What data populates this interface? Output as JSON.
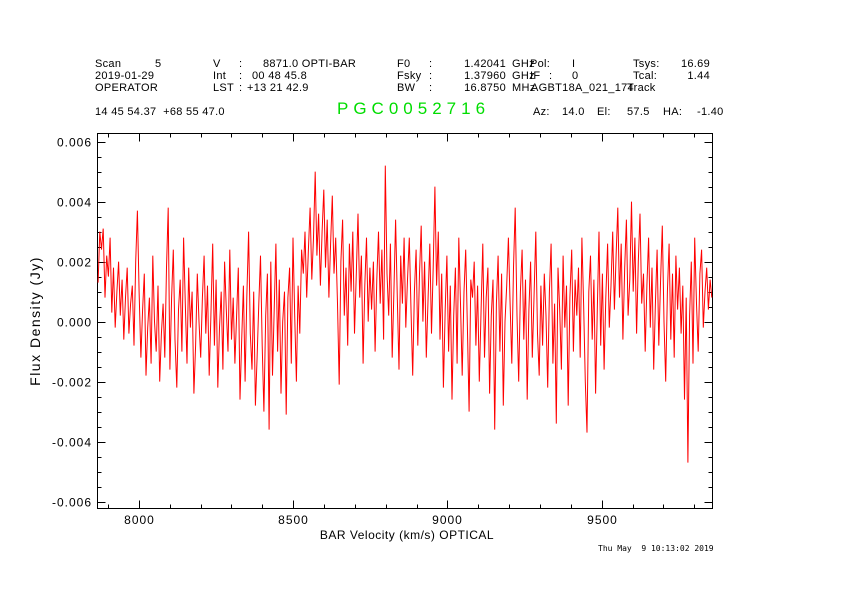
{
  "header": {
    "colon": ":",
    "r1": {
      "scan_label": "Scan",
      "scan_value": "5",
      "v_label": "V",
      "v_value": "8871.0 OPTI-BAR",
      "f0_label": "F0",
      "f0_value": "1.42041",
      "f0_unit": "GHz",
      "pol_label": "Pol:",
      "pol_value": "I",
      "tsys_label": "Tsys:",
      "tsys_value": "16.69"
    },
    "r2": {
      "date": "2019-01-29",
      "int_label": "Int",
      "int_value": "00 48 45.8",
      "fsky_label": "Fsky",
      "fsky_value": "1.37960",
      "fsky_unit": "GHz",
      "if_label": "IF",
      "if_value": "0",
      "tcal_label": "Tcal:",
      "tcal_value": "1.44"
    },
    "r3": {
      "observer": "OPERATOR",
      "lst_label": "LST",
      "lst_value": "+13 21 42.9",
      "bw_label": "BW",
      "bw_value": "16.8750",
      "bw_unit": "MHz",
      "project": "AGBT18A_021_174",
      "proc": "Track"
    },
    "r4": {
      "coords": "14 45 54.37  +68 55 47.0",
      "source": "PGC0052716",
      "az_label": "Az:",
      "az_value": "14.0",
      "el_label": "El:",
      "el_value": "57.5",
      "ha_label": "HA:",
      "ha_value": "-1.40"
    }
  },
  "footer": {
    "timestamp": "Thu May  9 10:13:02 2019"
  },
  "colors": {
    "spectrum": "#ff0000",
    "source_title": "#00dd00",
    "axes": "#000000",
    "background": "#ffffff"
  },
  "chart_data": {
    "type": "line",
    "title": "PGC0052716",
    "xlabel": "BAR Velocity (km/s) OPTICAL",
    "ylabel": "Flux Density (Jy)",
    "xlim": [
      7866,
      9859
    ],
    "ylim": [
      -0.00623,
      0.00627
    ],
    "x_ticks": [
      8000,
      8500,
      9000,
      9500
    ],
    "x_tick_labels": [
      "8000",
      "8500",
      "9000",
      "9500"
    ],
    "x_minor_step": 100,
    "y_ticks": [
      0.006,
      0.004,
      0.002,
      0,
      -0.002,
      -0.004,
      -0.006
    ],
    "y_tick_labels": [
      "0.006",
      "0.004",
      "0.002",
      "0.000",
      "-0.002",
      "-0.004",
      "-0.006"
    ],
    "y_minor_step": 0.0005,
    "grid": false,
    "legend": false,
    "line_color": "#ff0000",
    "x_start": 7868,
    "x_step": 5.54,
    "value_scale": 0.0001,
    "values": [
      13,
      30,
      24,
      31,
      8,
      22,
      15,
      28,
      3,
      18,
      -2,
      10,
      20,
      2,
      14,
      -6,
      8,
      18,
      -4,
      6,
      12,
      -8,
      20,
      37,
      10,
      -12,
      4,
      16,
      -18,
      -2,
      8,
      -14,
      22,
      0,
      -10,
      12,
      -20,
      -4,
      6,
      -12,
      18,
      38,
      -16,
      8,
      24,
      -6,
      -22,
      4,
      14,
      -10,
      28,
      6,
      -14,
      18,
      -2,
      10,
      -24,
      -8,
      16,
      0,
      -12,
      8,
      22,
      -4,
      12,
      -18,
      2,
      26,
      -8,
      14,
      -22,
      -2,
      10,
      -16,
      20,
      4,
      -10,
      24,
      -6,
      8,
      -14,
      2,
      18,
      -26,
      -6,
      12,
      -20,
      8,
      30,
      -4,
      -16,
      10,
      -28,
      -12,
      6,
      22,
      -8,
      -30,
      2,
      16,
      -36,
      20,
      -18,
      4,
      26,
      -10,
      14,
      -24,
      0,
      10,
      -31,
      8,
      18,
      -14,
      28,
      2,
      -20,
      12,
      -4,
      24,
      16,
      30,
      8,
      24,
      38,
      14,
      28,
      50,
      22,
      36,
      12,
      30,
      44,
      18,
      34,
      8,
      26,
      42,
      16,
      28,
      6,
      -21,
      20,
      34,
      2,
      18,
      -8,
      26,
      10,
      30,
      -4,
      16,
      36,
      8,
      22,
      -14,
      12,
      28,
      0,
      18,
      4,
      20,
      -10,
      14,
      30,
      6,
      24,
      -6,
      52,
      16,
      2,
      26,
      -12,
      10,
      34,
      8,
      -16,
      22,
      6,
      28,
      -2,
      14,
      28,
      4,
      -18,
      10,
      24,
      -8,
      16,
      32,
      0,
      20,
      -12,
      8,
      26,
      -4,
      18,
      45,
      12,
      30,
      -6,
      16,
      -22,
      4,
      22,
      -10,
      12,
      -26,
      2,
      18,
      -14,
      28,
      6,
      -18,
      10,
      24,
      -2,
      -30,
      14,
      8,
      20,
      -8,
      12,
      -20,
      4,
      26,
      -12,
      8,
      18,
      -24,
      2,
      14,
      -36,
      6,
      22,
      -10,
      16,
      -28,
      0,
      12,
      28,
      6,
      -14,
      18,
      38,
      2,
      -20,
      10,
      24,
      -6,
      14,
      -26,
      4,
      20,
      -12,
      8,
      30,
      -4,
      -18,
      12,
      -8,
      16,
      2,
      -22,
      10,
      26,
      -14,
      6,
      -34,
      18,
      4,
      -16,
      22,
      -2,
      12,
      -28,
      8,
      24,
      -10,
      14,
      2,
      18,
      -12,
      28,
      6,
      -20,
      -37,
      10,
      22,
      -6,
      14,
      -24,
      4,
      30,
      -8,
      16,
      -16,
      8,
      26,
      -2,
      12,
      30,
      4,
      22,
      38,
      8,
      26,
      -6,
      18,
      34,
      2,
      14,
      40,
      10,
      28,
      -4,
      20,
      36,
      6,
      16,
      -10,
      12,
      28,
      -2,
      18,
      -16,
      6,
      24,
      -8,
      14,
      32,
      0,
      -20,
      10,
      26,
      -6,
      16,
      -12,
      22,
      4,
      18,
      -4,
      12,
      -26,
      8,
      -47,
      2,
      20,
      -14,
      28,
      6,
      -10,
      16,
      24,
      -2,
      10,
      18,
      4,
      14,
      8
    ]
  }
}
